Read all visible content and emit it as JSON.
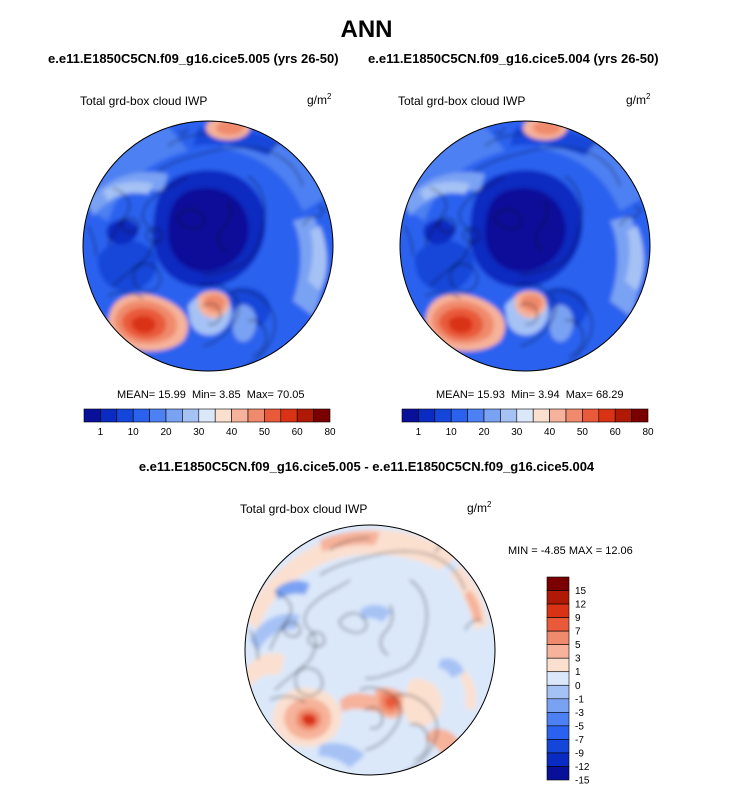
{
  "title": "ANN",
  "case_titles": {
    "left": "e.e11.E1850C5CN.f09_g16.cice5.005 (yrs 26-50)",
    "right": "e.e11.E1850C5CN.f09_g16.cice5.004 (yrs 26-50)"
  },
  "diff_title": "e.e11.E1850C5CN.f09_g16.cice5.005 - e.e11.E1850C5CN.f09_g16.cice5.004",
  "panels": [
    {
      "label": "Total grd-box cloud IWP",
      "units": "g/m",
      "units_exp": "2",
      "mean": "15.99",
      "min": "3.85",
      "max": "70.05"
    },
    {
      "label": "Total grd-box cloud IWP",
      "units": "g/m",
      "units_exp": "2",
      "mean": "15.93",
      "min": "3.94",
      "max": "68.29"
    },
    {
      "label": "Total grd-box cloud IWP",
      "units": "g/m",
      "units_exp": "2",
      "min": "-4.85",
      "max": "12.06"
    }
  ],
  "stat_labels": {
    "mean": "MEAN=",
    "min": "Min=",
    "max": "Max=",
    "min_upper": "MIN =",
    "max_upper": "MAX ="
  },
  "chart_data": [
    {
      "type": "heatmap",
      "projection": "north-polar-stereographic",
      "title": "Total grd-box cloud IWP",
      "units": "g/m2",
      "colorbar": {
        "orientation": "horizontal",
        "levels": [
          1,
          5,
          10,
          15,
          20,
          25,
          30,
          35,
          40,
          45,
          50,
          55,
          60,
          70,
          80
        ],
        "tick_labels": [
          "1",
          "10",
          "20",
          "30",
          "40",
          "50",
          "60",
          "80"
        ],
        "colors": [
          "#08109a",
          "#0a2bc1",
          "#1446d9",
          "#2a62ef",
          "#4d80f2",
          "#7aa2f3",
          "#a6c2f5",
          "#dbe8fa",
          "#fbe0d0",
          "#f6b29a",
          "#f08a6c",
          "#e95a3b",
          "#d93214",
          "#b01905",
          "#7a0000"
        ]
      },
      "stats": {
        "mean": 15.99,
        "min": 3.85,
        "max": 70.05
      }
    },
    {
      "type": "heatmap",
      "projection": "north-polar-stereographic",
      "title": "Total grd-box cloud IWP",
      "units": "g/m2",
      "colorbar": {
        "orientation": "horizontal",
        "levels": [
          1,
          5,
          10,
          15,
          20,
          25,
          30,
          35,
          40,
          45,
          50,
          55,
          60,
          70,
          80
        ],
        "tick_labels": [
          "1",
          "10",
          "20",
          "30",
          "40",
          "50",
          "60",
          "80"
        ],
        "colors": [
          "#08109a",
          "#0a2bc1",
          "#1446d9",
          "#2a62ef",
          "#4d80f2",
          "#7aa2f3",
          "#a6c2f5",
          "#dbe8fa",
          "#fbe0d0",
          "#f6b29a",
          "#f08a6c",
          "#e95a3b",
          "#d93214",
          "#b01905",
          "#7a0000"
        ]
      },
      "stats": {
        "mean": 15.93,
        "min": 3.94,
        "max": 68.29
      }
    },
    {
      "type": "heatmap",
      "projection": "north-polar-stereographic",
      "title": "Total grd-box cloud IWP",
      "units": "g/m2",
      "colorbar": {
        "orientation": "vertical",
        "levels": [
          -15,
          -12,
          -9,
          -7,
          -5,
          -3,
          -1,
          0,
          1,
          3,
          5,
          7,
          9,
          12,
          15
        ],
        "tick_labels": [
          "15",
          "12",
          "9",
          "7",
          "5",
          "3",
          "1",
          "0",
          "-1",
          "-3",
          "-5",
          "-7",
          "-9",
          "-12",
          "-15"
        ],
        "colors": [
          "#08109a",
          "#0a2bc1",
          "#1446d9",
          "#2a62ef",
          "#4d80f2",
          "#7aa2f3",
          "#a6c2f5",
          "#dbe8fa",
          "#fbe0d0",
          "#f6b29a",
          "#f08a6c",
          "#e95a3b",
          "#d93214",
          "#b01905",
          "#7a0000"
        ]
      },
      "stats": {
        "min": -4.85,
        "max": 12.06
      }
    }
  ]
}
